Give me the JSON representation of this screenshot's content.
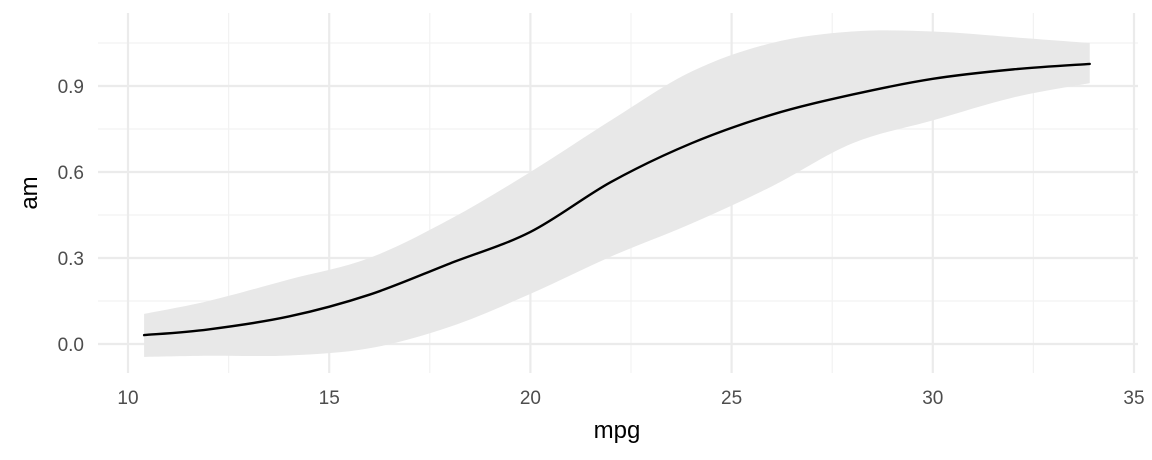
{
  "chart_data": {
    "type": "area",
    "title": "",
    "xlabel": "mpg",
    "ylabel": "am",
    "xlim": [
      10,
      35
    ],
    "ylim": [
      -0.065,
      1.105
    ],
    "x_ticks": [
      10,
      15,
      20,
      25,
      30,
      35
    ],
    "x_tick_labels": [
      "10",
      "15",
      "20",
      "25",
      "30",
      "35"
    ],
    "x_minor_ticks": [
      12.5,
      17.5,
      22.5,
      27.5,
      32.5
    ],
    "y_ticks": [
      0.0,
      0.3,
      0.6,
      0.9
    ],
    "y_tick_labels": [
      "0.0",
      "0.3",
      "0.6",
      "0.9"
    ],
    "y_minor_ticks": [
      0.15,
      0.45,
      0.75,
      1.05
    ],
    "grid": true,
    "legend": "none",
    "series": [
      {
        "x": [
          10.4,
          12,
          14,
          16,
          18,
          20,
          22,
          24,
          26,
          28,
          30,
          32,
          33.9
        ],
        "y": [
          0.031,
          0.051,
          0.096,
          0.172,
          0.281,
          0.391,
          0.565,
          0.7,
          0.8,
          0.87,
          0.925,
          0.958,
          0.977
        ],
        "lower": [
          -0.045,
          -0.041,
          -0.04,
          -0.015,
          0.06,
          0.175,
          0.305,
          0.42,
          0.55,
          0.7,
          0.78,
          0.86,
          0.91
        ],
        "upper": [
          0.105,
          0.15,
          0.225,
          0.3,
          0.435,
          0.6,
          0.78,
          0.95,
          1.05,
          1.09,
          1.09,
          1.07,
          1.05
        ]
      }
    ],
    "colors": {
      "line": "#000000",
      "band": "#e8e8e8"
    }
  }
}
